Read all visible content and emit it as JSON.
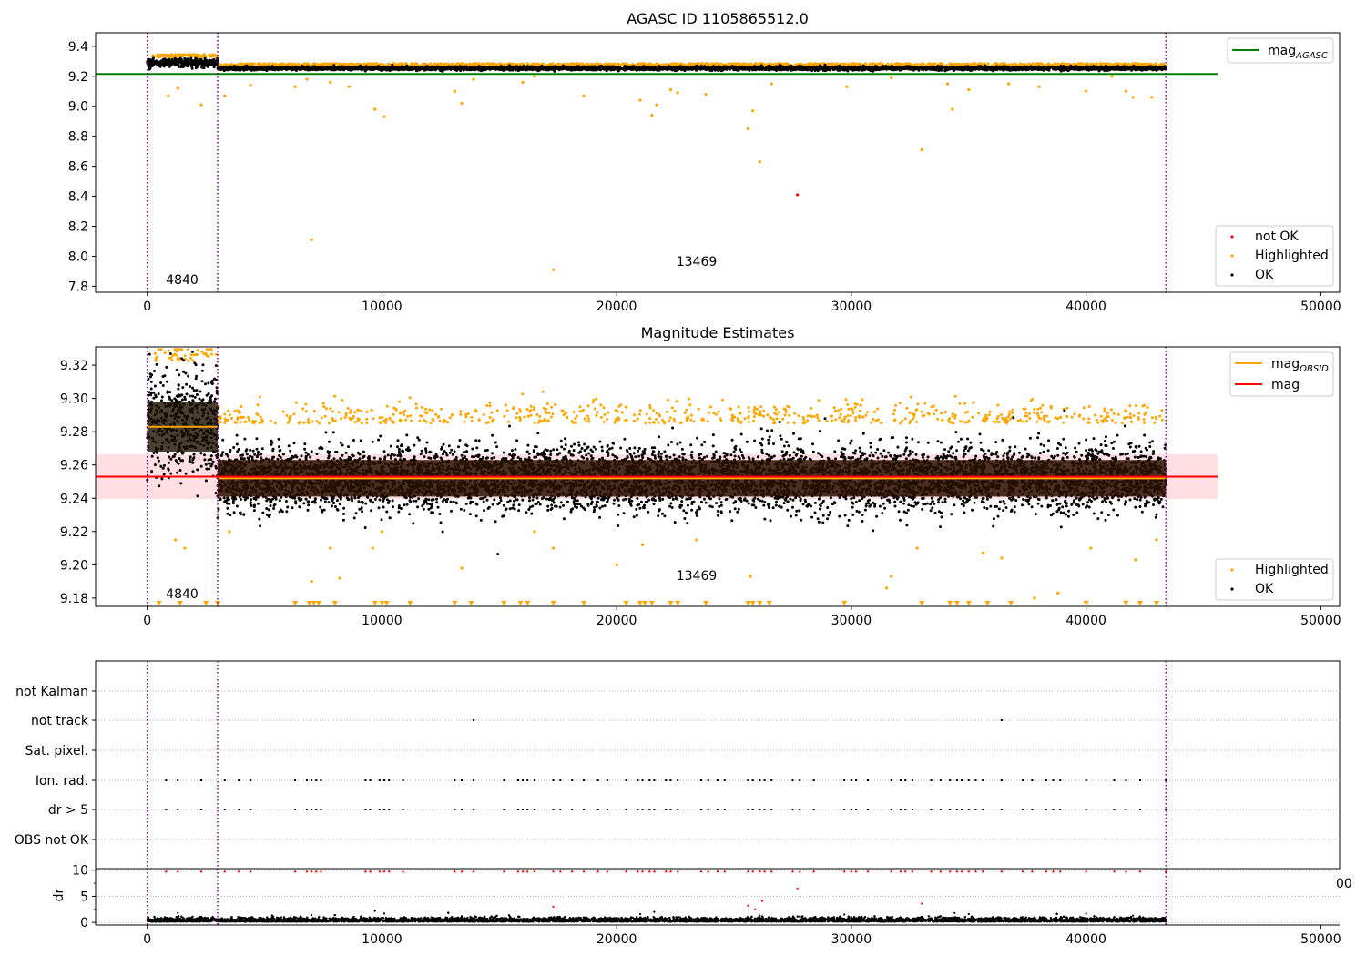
{
  "colors": {
    "ok": "#000000",
    "highlighted": "#ffa500",
    "not_ok": "#ff0000",
    "mag_agasc": "#008000",
    "mag_obsid": "#ffa500",
    "mag": "#ff0000",
    "obs_boundary": "#800080",
    "mag_band": "#ffdfe3"
  },
  "chart_data": [
    {
      "type": "scatter",
      "title": "AGASC ID 1105865512.0",
      "xlim": [
        -2200,
        50800
      ],
      "ylim": [
        7.76,
        9.49
      ],
      "xticks": [
        0,
        10000,
        20000,
        30000,
        40000,
        50000
      ],
      "xtick_labels": [
        "0",
        "10000",
        "20000",
        "30000",
        "40000",
        "50000"
      ],
      "yticks": [
        7.8,
        8.0,
        8.2,
        8.4,
        8.6,
        8.8,
        9.0,
        9.2,
        9.4
      ],
      "ytick_labels": [
        "7.8",
        "8.0",
        "8.2",
        "8.4",
        "8.6",
        "8.8",
        "9.0",
        "9.2",
        "9.4"
      ],
      "obs_boundaries": [
        0,
        3000,
        43400
      ],
      "obs_labels": [
        {
          "text": "4840",
          "x": 1500,
          "y": 7.82
        },
        {
          "text": "13469",
          "x": 23300,
          "y": 7.94
        }
      ],
      "lines": [
        {
          "name": "mag_AGASC",
          "legend": "mag",
          "legend_sub": "AGASC",
          "color_key": "mag_agasc",
          "y": 9.215,
          "x": [
            -2200,
            45600
          ]
        }
      ],
      "bands": [],
      "series": [
        {
          "name": "OK",
          "color_key": "ok",
          "segments": [
            [
              0,
              3000,
              9.29,
              0.013
            ],
            [
              3000,
              43400,
              9.253,
              0.006
            ]
          ]
        },
        {
          "name": "Highlighted",
          "color_key": "highlighted",
          "upper": [
            [
              200,
              3000,
              9.33
            ],
            [
              3000,
              43400,
              9.27
            ]
          ],
          "outliers": [
            [
              900,
              9.07
            ],
            [
              1300,
              9.12
            ],
            [
              2300,
              9.01
            ],
            [
              3300,
              9.07
            ],
            [
              4400,
              9.14
            ],
            [
              6300,
              9.13
            ],
            [
              6800,
              9.18
            ],
            [
              7000,
              8.11
            ],
            [
              7800,
              9.16
            ],
            [
              8600,
              9.13
            ],
            [
              9700,
              8.98
            ],
            [
              10100,
              8.93
            ],
            [
              13100,
              9.1
            ],
            [
              13400,
              9.02
            ],
            [
              13900,
              9.18
            ],
            [
              16000,
              9.16
            ],
            [
              16500,
              9.2
            ],
            [
              17300,
              7.91
            ],
            [
              18600,
              9.07
            ],
            [
              21000,
              9.04
            ],
            [
              21500,
              8.94
            ],
            [
              21700,
              9.01
            ],
            [
              22300,
              9.11
            ],
            [
              22600,
              9.09
            ],
            [
              23800,
              9.08
            ],
            [
              25600,
              8.85
            ],
            [
              25800,
              8.97
            ],
            [
              26100,
              8.63
            ],
            [
              26600,
              9.15
            ],
            [
              29800,
              9.13
            ],
            [
              31700,
              9.19
            ],
            [
              33000,
              8.71
            ],
            [
              34100,
              9.15
            ],
            [
              34300,
              8.98
            ],
            [
              35000,
              9.11
            ],
            [
              36700,
              9.15
            ],
            [
              38000,
              9.13
            ],
            [
              40000,
              9.1
            ],
            [
              41100,
              9.2
            ],
            [
              41700,
              9.1
            ],
            [
              42000,
              9.06
            ],
            [
              42800,
              9.06
            ]
          ]
        },
        {
          "name": "not OK",
          "color_key": "not_ok",
          "outliers": [
            [
              27700,
              8.41
            ]
          ]
        }
      ],
      "legend_lines": [
        "mag_AGASC"
      ],
      "legend_points": [
        "not OK",
        "Highlighted",
        "OK"
      ]
    },
    {
      "type": "scatter",
      "title": "Magnitude Estimates",
      "xlim": [
        -2200,
        50800
      ],
      "ylim": [
        9.175,
        9.331
      ],
      "xticks": [
        0,
        10000,
        20000,
        30000,
        40000,
        50000
      ],
      "xtick_labels": [
        "0",
        "10000",
        "20000",
        "30000",
        "40000",
        "50000"
      ],
      "yticks": [
        9.18,
        9.2,
        9.22,
        9.24,
        9.26,
        9.28,
        9.3,
        9.32
      ],
      "ytick_labels": [
        "9.18",
        "9.20",
        "9.22",
        "9.24",
        "9.26",
        "9.28",
        "9.30",
        "9.32"
      ],
      "obs_boundaries": [
        0,
        3000,
        43400
      ],
      "obs_labels": [
        {
          "text": "4840",
          "x": 1500,
          "y": 9.179
        },
        {
          "text": "13469",
          "x": 23300,
          "y": 9.193
        }
      ],
      "lines": [
        {
          "name": "mag_OBSID_1",
          "legend": "mag",
          "legend_sub": "OBSID",
          "color_key": "mag_obsid",
          "y": 9.283,
          "x": [
            0,
            3000
          ]
        },
        {
          "name": "mag_OBSID_2",
          "legend": "mag",
          "legend_sub": "OBSID",
          "color_key": "mag_obsid",
          "y": 9.252,
          "x": [
            3000,
            43400
          ]
        },
        {
          "name": "mag",
          "legend": "mag",
          "color_key": "mag",
          "y": 9.253,
          "x": [
            -2200,
            45600
          ]
        }
      ],
      "bands": [
        {
          "color_key": "mag_band",
          "y0": 9.2395,
          "y1": 9.2665,
          "x": [
            -2200,
            45600
          ]
        }
      ],
      "series": [
        {
          "name": "OK",
          "color_key": "ok",
          "segments": [
            [
              0,
              3000,
              9.285,
              0.015
            ],
            [
              3000,
              43400,
              9.252,
              0.0095
            ]
          ]
        },
        {
          "name": "Highlighted",
          "color_key": "highlighted",
          "upper": [
            [
              200,
              3000,
              9.327
            ],
            [
              3000,
              43400,
              9.29
            ]
          ],
          "outliers": [
            [
              1200,
              9.215
            ],
            [
              1600,
              9.21
            ],
            [
              3500,
              9.22
            ],
            [
              7000,
              9.19
            ],
            [
              7800,
              9.21
            ],
            [
              8200,
              9.192
            ],
            [
              9600,
              9.21
            ],
            [
              10000,
              9.22
            ],
            [
              13400,
              9.198
            ],
            [
              16500,
              9.22
            ],
            [
              17300,
              9.21
            ],
            [
              20000,
              9.2
            ],
            [
              21100,
              9.212
            ],
            [
              23400,
              9.215
            ],
            [
              25700,
              9.193
            ],
            [
              31500,
              9.186
            ],
            [
              31700,
              9.193
            ],
            [
              32800,
              9.21
            ],
            [
              35600,
              9.207
            ],
            [
              36400,
              9.204
            ],
            [
              37800,
              9.18
            ],
            [
              38800,
              9.183
            ],
            [
              40200,
              9.21
            ],
            [
              42100,
              9.203
            ],
            [
              43000,
              9.215
            ]
          ],
          "clipped_x": [
            500,
            1400,
            2500,
            3000,
            6300,
            6900,
            7100,
            7300,
            8000,
            9700,
            10000,
            10200,
            11200,
            13100,
            13800,
            15200,
            15900,
            16200,
            17300,
            18600,
            20400,
            21000,
            21200,
            21500,
            22300,
            22600,
            23800,
            25600,
            25800,
            26100,
            26500,
            29700,
            33000,
            34200,
            34500,
            35000,
            35800,
            36800,
            40000,
            41700,
            42300,
            43000
          ]
        }
      ],
      "legend_lines": [
        "mag_OBSID",
        "mag"
      ],
      "legend_points": [
        "Highlighted",
        "OK"
      ]
    },
    {
      "type": "scatter",
      "xlim": [
        -2200,
        50800
      ],
      "flags": [
        "not Kalman",
        "not track",
        "Sat. pixel.",
        "Ion. rad.",
        "dr > 5",
        "OBS not OK"
      ],
      "flag_points": {
        "not track": [
          13900,
          36400
        ],
        "Ion. rad.": [
          800,
          1300,
          2300,
          3300,
          3900,
          4400,
          6300,
          6800,
          7000,
          7200,
          7400,
          9300,
          9500,
          9900,
          10100,
          10300,
          10900,
          13100,
          13400,
          13900,
          15200,
          15800,
          16000,
          16200,
          16500,
          17300,
          17600,
          18100,
          18600,
          19200,
          19600,
          20400,
          20900,
          21100,
          21400,
          21600,
          22100,
          22300,
          22600,
          23600,
          23900,
          24300,
          24600,
          25600,
          25800,
          26100,
          26300,
          26600,
          27500,
          27800,
          28400,
          29700,
          30000,
          30200,
          30700,
          31700,
          32100,
          32300,
          32600,
          33400,
          33800,
          34200,
          34500,
          34700,
          35000,
          35300,
          35600,
          36400,
          37300,
          37700,
          38300,
          38600,
          38900,
          40000,
          41200,
          41700,
          42300,
          43400
        ],
        "dr > 5": [
          800,
          1300,
          2300,
          3300,
          3900,
          4400,
          6300,
          6800,
          7000,
          7200,
          7400,
          9300,
          9500,
          9900,
          10100,
          10300,
          10900,
          13100,
          13400,
          13900,
          15200,
          15800,
          16000,
          16200,
          16500,
          17300,
          17600,
          18100,
          18600,
          19200,
          19600,
          20400,
          20900,
          21100,
          21400,
          21600,
          22100,
          22300,
          22600,
          23600,
          23900,
          24300,
          24600,
          25600,
          25800,
          26100,
          26300,
          26600,
          27500,
          27800,
          28400,
          29700,
          30000,
          30200,
          30700,
          31700,
          32100,
          32300,
          32600,
          33400,
          33800,
          34200,
          34500,
          34700,
          35000,
          35300,
          35600,
          36400,
          37300,
          37700,
          38300,
          38600,
          38900,
          40000,
          41200,
          41700,
          42300,
          43400
        ]
      },
      "obs_boundaries": [
        0,
        3000,
        43400
      ]
    },
    {
      "type": "scatter",
      "ylabel": "dr",
      "xlim": [
        -2200,
        50800
      ],
      "ylim": [
        -0.5,
        10.3
      ],
      "xticks": [
        0,
        10000,
        20000,
        30000,
        40000,
        50000
      ],
      "xtick_labels": [
        "0",
        "10000",
        "20000",
        "30000",
        "40000",
        "50000"
      ],
      "yticks": [
        0,
        5,
        10
      ],
      "ytick_labels": [
        "0",
        "5",
        "10"
      ],
      "clipped_label": "00",
      "obs_boundaries": [
        0,
        3000,
        43400
      ],
      "series": [
        {
          "name": "OK",
          "color_key": "ok",
          "band": [
            0,
            43400,
            0.15,
            0.35
          ],
          "outliers": [
            [
              1300,
              1.8
            ],
            [
              2300,
              1.1
            ],
            [
              7000,
              1.4
            ],
            [
              9700,
              2.2
            ],
            [
              10100,
              1.7
            ],
            [
              13400,
              1.2
            ],
            [
              21000,
              1.6
            ],
            [
              21600,
              2.0
            ],
            [
              26100,
              1.3
            ],
            [
              29700,
              1.5
            ],
            [
              34400,
              1.8
            ],
            [
              35000,
              1.6
            ],
            [
              40000,
              1.7
            ],
            [
              42000,
              1.3
            ]
          ]
        },
        {
          "name": "not OK",
          "color_key": "not_ok",
          "outliers": [
            [
              17300,
              3.0
            ],
            [
              25600,
              3.2
            ],
            [
              25900,
              2.5
            ],
            [
              26200,
              4.1
            ],
            [
              27700,
              6.5
            ],
            [
              33000,
              3.6
            ]
          ],
          "clipped_x": [
            800,
            1300,
            2300,
            3300,
            3900,
            4400,
            6300,
            6800,
            7000,
            7200,
            7400,
            9300,
            9500,
            9900,
            10100,
            10300,
            10900,
            13100,
            13400,
            13900,
            15200,
            15800,
            16000,
            16200,
            16500,
            17300,
            17600,
            18100,
            18600,
            19200,
            19600,
            20400,
            20900,
            21100,
            21400,
            21600,
            22100,
            22300,
            22600,
            23600,
            23900,
            24300,
            24600,
            25600,
            25800,
            26100,
            26300,
            26600,
            27500,
            27800,
            28400,
            29700,
            30000,
            30200,
            30700,
            31700,
            32100,
            32300,
            32600,
            33400,
            33800,
            34200,
            34500,
            34700,
            35000,
            35300,
            35600,
            36400,
            37300,
            37700,
            38300,
            38600,
            38900,
            40000,
            41200,
            41700,
            42300,
            43400
          ]
        }
      ]
    }
  ]
}
